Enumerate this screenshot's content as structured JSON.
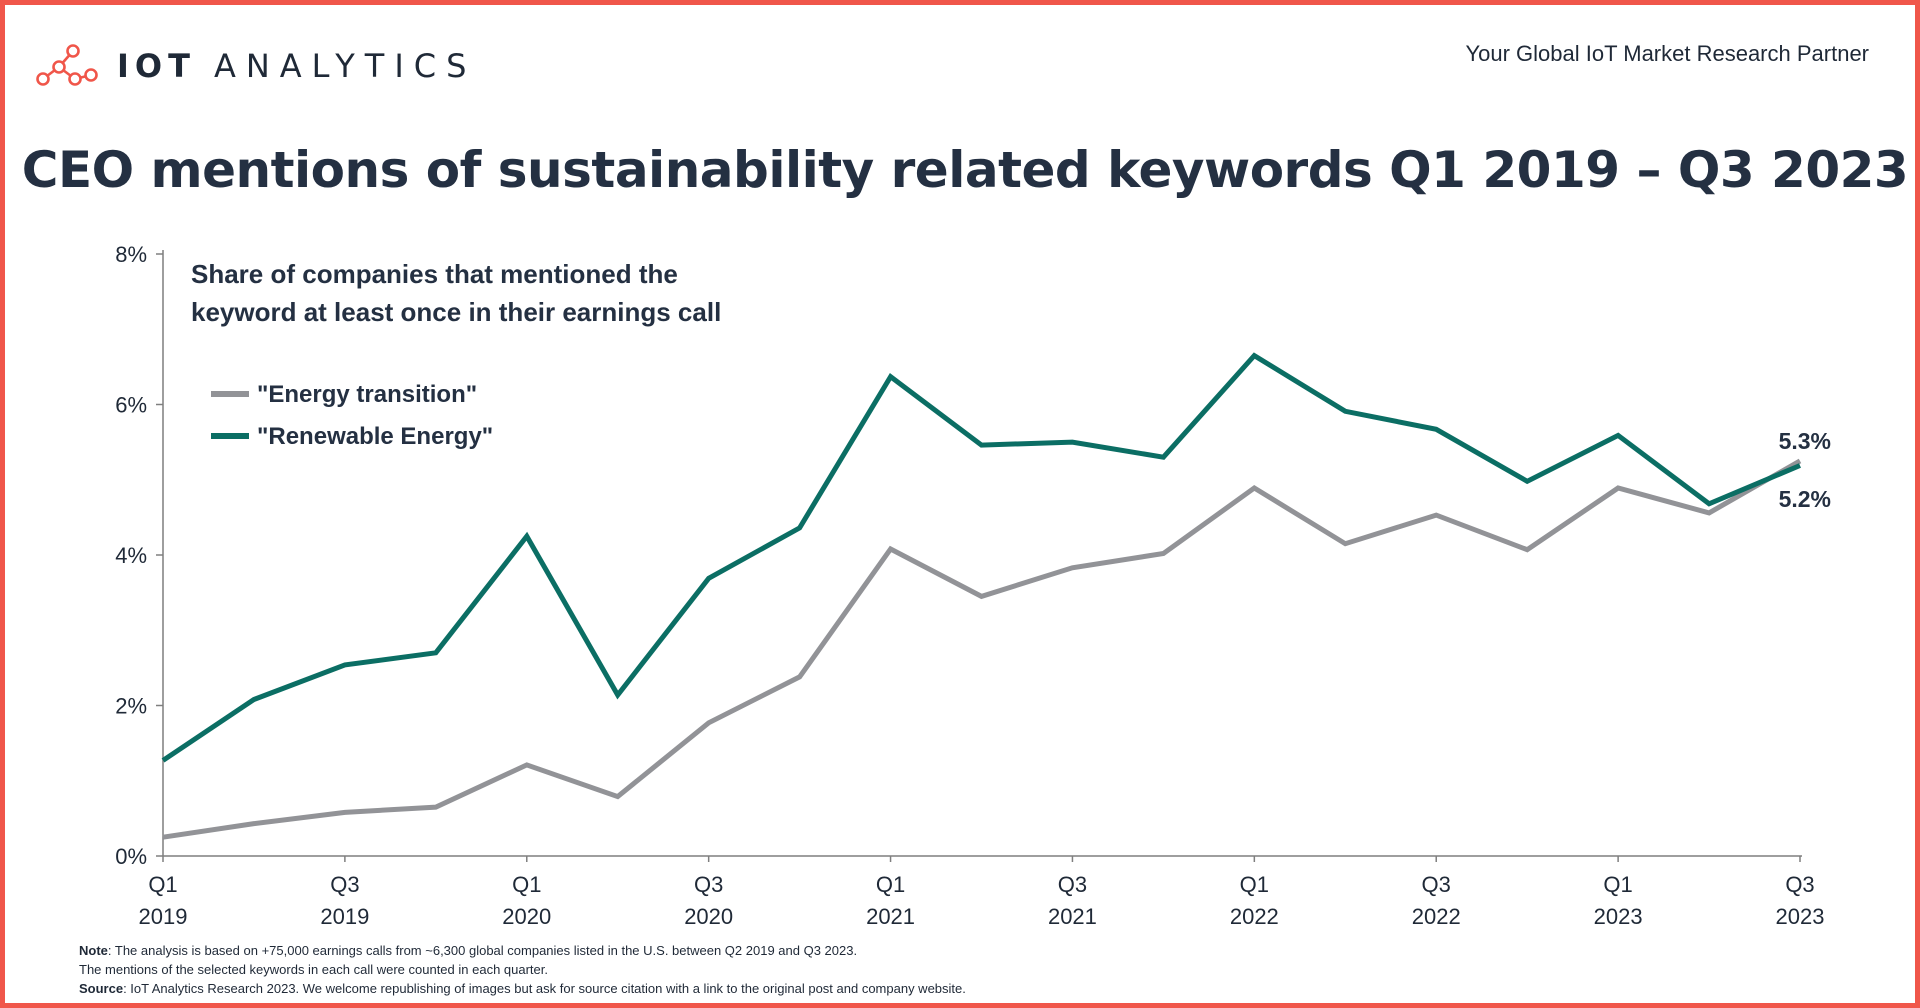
{
  "header": {
    "logo_bold": "IOT",
    "logo_light": "ANALYTICS",
    "tagline": "Your Global IoT Market Research Partner"
  },
  "colors": {
    "frame": "#f0564a",
    "energy_transition": "#929397",
    "renewable_energy": "#0b6e64",
    "logo_accent": "#f0564a"
  },
  "chart_data": {
    "type": "line",
    "title": "CEO mentions of sustainability related keywords Q1 2019 – Q3 2023",
    "subtitle_lines": [
      "Share of companies that mentioned the",
      "keyword at least once in their earnings call"
    ],
    "x": [
      "Q1 2019",
      "Q2 2019",
      "Q3 2019",
      "Q4 2019",
      "Q1 2020",
      "Q2 2020",
      "Q3 2020",
      "Q4 2020",
      "Q1 2021",
      "Q2 2021",
      "Q3 2021",
      "Q4 2021",
      "Q1 2022",
      "Q2 2022",
      "Q3 2022",
      "Q4 2022",
      "Q1 2023",
      "Q2 2023",
      "Q3 2023"
    ],
    "x_tick_labels": [
      {
        "index": 0,
        "q": "Q1",
        "year": "2019"
      },
      {
        "index": 2,
        "q": "Q3",
        "year": "2019"
      },
      {
        "index": 4,
        "q": "Q1",
        "year": "2020"
      },
      {
        "index": 6,
        "q": "Q3",
        "year": "2020"
      },
      {
        "index": 8,
        "q": "Q1",
        "year": "2021"
      },
      {
        "index": 10,
        "q": "Q3",
        "year": "2021"
      },
      {
        "index": 12,
        "q": "Q1",
        "year": "2022"
      },
      {
        "index": 14,
        "q": "Q3",
        "year": "2022"
      },
      {
        "index": 16,
        "q": "Q1",
        "year": "2023"
      },
      {
        "index": 18,
        "q": "Q3",
        "year": "2023"
      }
    ],
    "y_ticks": [
      0,
      2,
      4,
      6,
      8
    ],
    "y_tick_labels": [
      "0%",
      "2%",
      "4%",
      "6%",
      "8%"
    ],
    "ylim": [
      0,
      8
    ],
    "unit": "%",
    "grid": false,
    "legend_position": "top-left",
    "series": [
      {
        "name": "\"Energy transition\"",
        "color": "#929397",
        "values": [
          0.25,
          0.43,
          0.58,
          0.65,
          1.21,
          0.79,
          1.77,
          2.38,
          4.08,
          3.45,
          3.83,
          4.02,
          4.89,
          4.15,
          4.53,
          4.07,
          4.89,
          4.56,
          5.25
        ]
      },
      {
        "name": "\"Renewable Energy\"",
        "color": "#0b6e64",
        "values": [
          1.27,
          2.08,
          2.54,
          2.7,
          4.25,
          2.14,
          3.69,
          4.36,
          6.37,
          5.46,
          5.5,
          5.3,
          6.65,
          5.91,
          5.67,
          4.98,
          5.59,
          4.68,
          5.19
        ]
      }
    ],
    "end_labels": [
      "5.3%",
      "5.2%"
    ]
  },
  "footnote": {
    "note_label": "Note",
    "note_text": ": The analysis is based on +75,000 earnings calls from ~6,300 global companies listed in the U.S. between Q2 2019 and Q3 2023.",
    "note_text2": "The mentions of the selected keywords in each call were counted in each quarter.",
    "source_label": "Source",
    "source_text": ": IoT Analytics Research 2023. We welcome republishing of images but ask for source citation with a link to the original post and company website."
  }
}
